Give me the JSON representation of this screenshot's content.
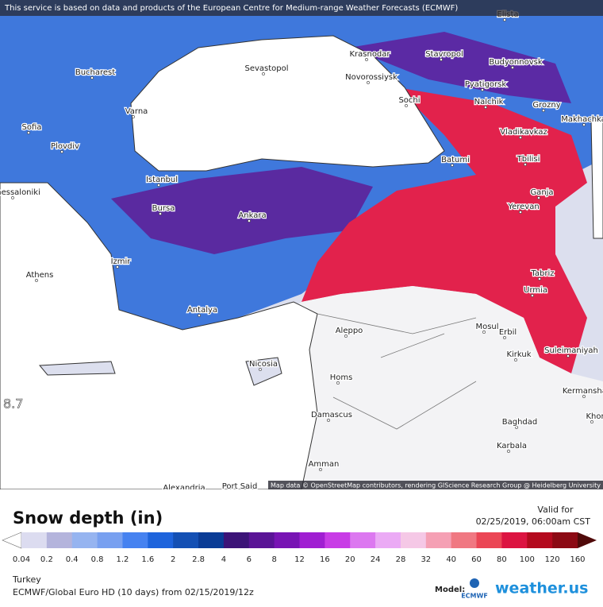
{
  "header": {
    "notice": "This service is based on data and products of the European Centre for Medium-range Weather Forecasts (ECMWF)"
  },
  "map": {
    "attribution": "Map data © OpenStreetMap contributors, rendering GIScience Research Group @ Heidelberg University",
    "edge_value": "8.7",
    "cities": [
      "Elista",
      "Krasnodar",
      "Stavropol",
      "Budyonnovsk",
      "Novorossiysk",
      "Sevastopol",
      "Bucharest",
      "Pyatigorsk",
      "Nalchik",
      "Grozny",
      "Sochi",
      "Varna",
      "Vladikavkaz",
      "Makhachkala",
      "Sofia",
      "Plovdiv",
      "Batumi",
      "Tbilisi",
      "Istanbul",
      "Thessaloniki",
      "Ganja",
      "Bursa",
      "Ankara",
      "Yerevan",
      "Izmir",
      "Athens",
      "Tabriz",
      "Urmia",
      "Antalya",
      "Mosul",
      "Aleppo",
      "Erbil",
      "Kirkuk",
      "Suleimaniyah",
      "Nicosia",
      "Homs",
      "Kermanshah",
      "Damascus",
      "Baghdad",
      "Karbala",
      "Amman",
      "Alexandria",
      "Port Said",
      "Khor"
    ]
  },
  "footer": {
    "title": "Snow depth (in)",
    "valid_label": "Valid for",
    "valid_time": "02/25/2019, 06:00am CST",
    "legend": {
      "labels": [
        "0.04",
        "0.2",
        "0.4",
        "0.8",
        "1.2",
        "1.6",
        "2",
        "2.8",
        "4",
        "6",
        "8",
        "12",
        "16",
        "20",
        "24",
        "28",
        "32",
        "40",
        "60",
        "80",
        "100",
        "120",
        "160"
      ],
      "colors": [
        "#dcdcf0",
        "#b4b4dc",
        "#96b4f0",
        "#78a0f0",
        "#4682f0",
        "#1e64dc",
        "#1450b4",
        "#0a3c96",
        "#3c1478",
        "#5a1496",
        "#7814b4",
        "#a01ed2",
        "#c83ce6",
        "#dc78f0",
        "#ebaaf5",
        "#f5c8e6",
        "#f5a0b4",
        "#f07882",
        "#eb4655",
        "#dc1441",
        "#b40a1e",
        "#8c0a14"
      ]
    },
    "region": "Turkey",
    "model_run": "ECMWF/Global Euro HD (10 days) from 02/15/2019/12z",
    "model_label": "Model:",
    "model_logo": "ECMWF",
    "brand": "weather.us"
  }
}
